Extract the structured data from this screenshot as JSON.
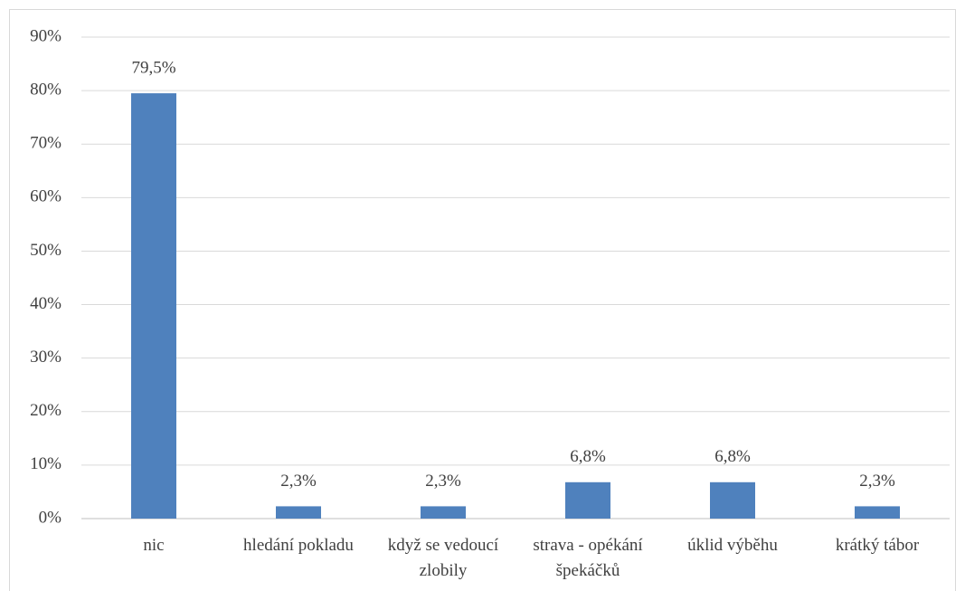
{
  "chart_data": {
    "type": "bar",
    "categories": [
      "nic",
      "hledání pokladu",
      "když se vedoucí zlobily",
      "strava - opékání špekáčků",
      "úklid výběhu",
      "krátký tábor"
    ],
    "values": [
      79.5,
      2.3,
      2.3,
      6.8,
      6.8,
      2.3
    ],
    "value_labels": [
      "79,5%",
      "2,3%",
      "2,3%",
      "6,8%",
      "6,8%",
      "2,3%"
    ],
    "color": "#4f81bd",
    "ylim": [
      0,
      90
    ],
    "yticks": [
      {
        "value": 0,
        "label": "0%"
      },
      {
        "value": 10,
        "label": "10%"
      },
      {
        "value": 20,
        "label": "20%"
      },
      {
        "value": 30,
        "label": "30%"
      },
      {
        "value": 40,
        "label": "40%"
      },
      {
        "value": 50,
        "label": "50%"
      },
      {
        "value": 60,
        "label": "60%"
      },
      {
        "value": 70,
        "label": "70%"
      },
      {
        "value": 80,
        "label": "80%"
      },
      {
        "value": 90,
        "label": "90%"
      }
    ],
    "grid": true
  }
}
